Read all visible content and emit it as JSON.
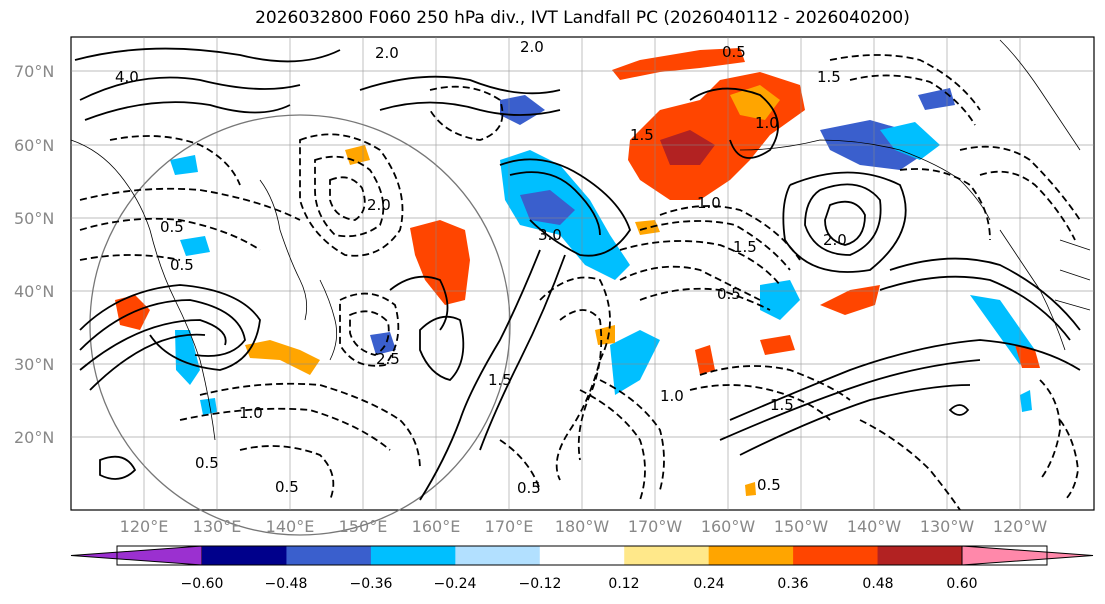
{
  "title": "2026032800 F060 250 hPa div., IVT Landfall PC (2026040112 - 2026040200)",
  "lat_labels": [
    "70°N",
    "60°N",
    "50°N",
    "40°N",
    "30°N",
    "20°N"
  ],
  "lon_labels": [
    "120°E",
    "130°E",
    "140°E",
    "150°E",
    "160°E",
    "170°E",
    "180°W",
    "170°W",
    "160°W",
    "150°W",
    "140°W",
    "130°W",
    "120°W"
  ],
  "contour_labels": [
    "4.0",
    "2.0",
    "2.0",
    "0.5",
    "1.5",
    "1.0",
    "0.5",
    "1.5",
    "2.0",
    "0.5",
    "1.5",
    "1.0",
    "0.5",
    "3.0",
    "2.5",
    "1.5",
    "1.0",
    "1.0",
    "0.5",
    "1.5",
    "2.0",
    "0.5",
    "0.5",
    "0.5"
  ],
  "colorbar": {
    "ticks": [
      "−0.60",
      "−0.48",
      "−0.36",
      "−0.24",
      "−0.12",
      "0.12",
      "0.24",
      "0.36",
      "0.48",
      "0.60"
    ],
    "colors": [
      "#9b30d0",
      "#00008b",
      "#3a5fcd",
      "#00bfff",
      "#b2e0ff",
      "#ffffff",
      "#ffe88a",
      "#ffa500",
      "#ff4500",
      "#b22222",
      "#ff88aa"
    ]
  }
}
